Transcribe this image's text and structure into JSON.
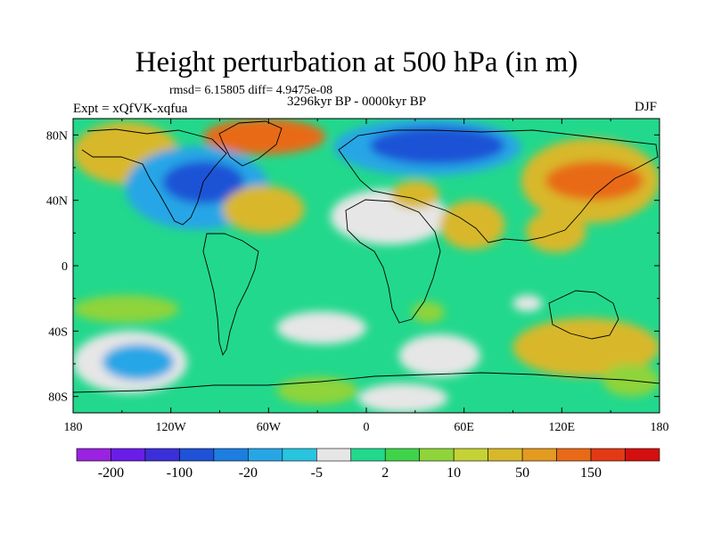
{
  "chart_data": {
    "type": "heatmap",
    "title": "Height perturbation at 500 hPa (in m)",
    "stats_line": "rmsd= 6.15805 diff= 4.9475e-08",
    "period": "3296kyr BP - 0000kyr BP",
    "experiment": "Expt = xQfVK-xqfua",
    "season": "DJF",
    "x_tick_labels": [
      "180",
      "120W",
      "60W",
      "0",
      "60E",
      "120E",
      "180"
    ],
    "x_tick_values": [
      -180,
      -120,
      -60,
      0,
      60,
      120,
      180
    ],
    "y_tick_labels": [
      "80N",
      "40N",
      "0",
      "40S",
      "80S"
    ],
    "y_tick_values": [
      80,
      40,
      0,
      -40,
      -80
    ],
    "xlim": [
      -180,
      180
    ],
    "ylim": [
      -90,
      90
    ],
    "colorbar": {
      "labels": [
        "-200",
        "-100",
        "-20",
        "-5",
        "2",
        "10",
        "50",
        "150"
      ],
      "colors": [
        "#9a22e0",
        "#6a1de8",
        "#3b2fd9",
        "#1f52d6",
        "#1d7ee0",
        "#27a6e6",
        "#28c4e0",
        "#e6e6e6",
        "#22d88c",
        "#3fd34a",
        "#8fd43a",
        "#c4d236",
        "#d8b82a",
        "#e39a20",
        "#e86a18",
        "#e23a14",
        "#d40f0f"
      ]
    },
    "regions": [
      {
        "level": 10,
        "lon0": -180,
        "lon1": -115,
        "lat0": 50,
        "lat1": 88
      },
      {
        "level": 50,
        "lon0": -100,
        "lon1": -25,
        "lat0": 68,
        "lat1": 90
      },
      {
        "level": -20,
        "lon0": -148,
        "lon1": -60,
        "lat0": 22,
        "lat1": 73
      },
      {
        "level": -100,
        "lon0": -125,
        "lon1": -75,
        "lat0": 38,
        "lat1": 64
      },
      {
        "level": 10,
        "lon0": -88,
        "lon1": -38,
        "lat0": 20,
        "lat1": 49
      },
      {
        "level": -20,
        "lon0": -20,
        "lon1": 95,
        "lat0": 55,
        "lat1": 90
      },
      {
        "level": -100,
        "lon0": 2,
        "lon1": 85,
        "lat0": 62,
        "lat1": 85
      },
      {
        "level": -5,
        "lon0": -22,
        "lon1": 50,
        "lat0": 13,
        "lat1": 47
      },
      {
        "level": 10,
        "lon0": 15,
        "lon1": 45,
        "lat0": 35,
        "lat1": 52
      },
      {
        "level": 10,
        "lon0": 45,
        "lon1": 85,
        "lat0": 10,
        "lat1": 40
      },
      {
        "level": 10,
        "lon0": 95,
        "lon1": 180,
        "lat0": 26,
        "lat1": 78
      },
      {
        "level": 50,
        "lon0": 110,
        "lon1": 170,
        "lat0": 40,
        "lat1": 64
      },
      {
        "level": 10,
        "lon0": 98,
        "lon1": 135,
        "lat0": 8,
        "lat1": 34
      },
      {
        "level": 2,
        "lon0": -180,
        "lon1": -115,
        "lat0": -35,
        "lat1": -18
      },
      {
        "level": -5,
        "lon0": -180,
        "lon1": -110,
        "lat0": -78,
        "lat1": -40
      },
      {
        "level": -20,
        "lon0": -162,
        "lon1": -118,
        "lat0": -70,
        "lat1": -48
      },
      {
        "level": -5,
        "lon0": -55,
        "lon1": 0,
        "lat0": -48,
        "lat1": -28
      },
      {
        "level": 2,
        "lon0": -55,
        "lon1": -5,
        "lat0": -85,
        "lat1": -68
      },
      {
        "level": -5,
        "lon0": 20,
        "lon1": 70,
        "lat0": -68,
        "lat1": -42
      },
      {
        "level": 2,
        "lon0": 28,
        "lon1": 48,
        "lat0": -35,
        "lat1": -22
      },
      {
        "level": -5,
        "lon0": 90,
        "lon1": 108,
        "lat0": -28,
        "lat1": -18
      },
      {
        "level": 10,
        "lon0": 90,
        "lon1": 180,
        "lat0": -68,
        "lat1": -32
      },
      {
        "level": 2,
        "lon0": 145,
        "lon1": 180,
        "lat0": -80,
        "lat1": -60
      },
      {
        "level": -5,
        "lon0": -5,
        "lon1": 50,
        "lat0": -90,
        "lat1": -72
      }
    ]
  }
}
